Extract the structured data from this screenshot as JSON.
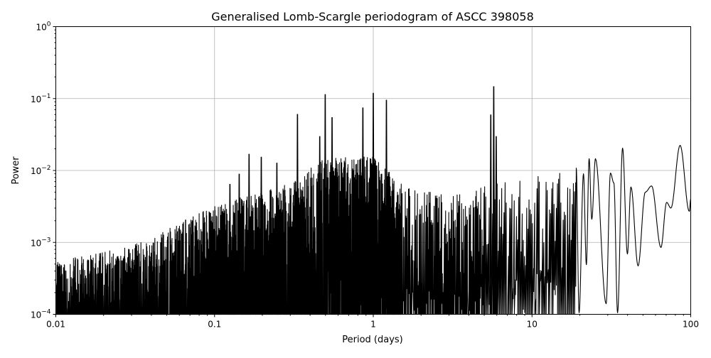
{
  "chart_data": {
    "type": "line",
    "title": "Generalised Lomb-Scargle periodogram of ASCC 398058",
    "xlabel": "Period (days)",
    "ylabel": "Power",
    "x_scale": "log",
    "y_scale": "log",
    "xlim": [
      0.01,
      100
    ],
    "ylim": [
      0.0001,
      1
    ],
    "grid": true,
    "line_color": "#000000",
    "grid_color": "#b0b0b0",
    "x_ticks": [
      {
        "value": 0.01,
        "label": "0.01"
      },
      {
        "value": 0.1,
        "label": "0.1"
      },
      {
        "value": 1,
        "label": "1"
      },
      {
        "value": 10,
        "label": "10"
      },
      {
        "value": 100,
        "label": "100"
      }
    ],
    "y_ticks": [
      {
        "value": 0.0001,
        "base": "10",
        "exp": "−4"
      },
      {
        "value": 0.001,
        "base": "10",
        "exp": "−3"
      },
      {
        "value": 0.01,
        "base": "10",
        "exp": "−2"
      },
      {
        "value": 0.1,
        "base": "10",
        "exp": "−1"
      },
      {
        "value": 1,
        "base": "10",
        "exp": "0"
      }
    ],
    "noise_envelope": [
      {
        "period": 0.01,
        "power": 0.0005
      },
      {
        "period": 0.03,
        "power": 0.0008
      },
      {
        "period": 0.1,
        "power": 0.003
      },
      {
        "period": 0.3,
        "power": 0.006
      },
      {
        "period": 0.5,
        "power": 0.014
      },
      {
        "period": 1.0,
        "power": 0.014
      },
      {
        "period": 1.5,
        "power": 0.006
      },
      {
        "period": 3.0,
        "power": 0.004
      },
      {
        "period": 6.0,
        "power": 0.006
      },
      {
        "period": 12.0,
        "power": 0.008
      },
      {
        "period": 19.0,
        "power": 0.009
      }
    ],
    "peaks": [
      {
        "period": 0.125,
        "power": 0.0065
      },
      {
        "period": 0.143,
        "power": 0.009
      },
      {
        "period": 0.165,
        "power": 0.017
      },
      {
        "period": 0.197,
        "power": 0.0155
      },
      {
        "period": 0.247,
        "power": 0.0128
      },
      {
        "period": 0.333,
        "power": 0.061
      },
      {
        "period": 0.46,
        "power": 0.03
      },
      {
        "period": 0.498,
        "power": 0.115
      },
      {
        "period": 0.55,
        "power": 0.055
      },
      {
        "period": 0.86,
        "power": 0.075
      },
      {
        "period": 1.0,
        "power": 0.12
      },
      {
        "period": 1.21,
        "power": 0.096
      },
      {
        "period": 5.5,
        "power": 0.06
      },
      {
        "period": 5.74,
        "power": 0.148
      },
      {
        "period": 5.95,
        "power": 0.03
      }
    ],
    "long_period_curve": [
      {
        "period": 19.0,
        "power": 0.0108
      },
      {
        "period": 19.8,
        "power": 0.000105
      },
      {
        "period": 21.1,
        "power": 0.009
      },
      {
        "period": 22.0,
        "power": 0.00049
      },
      {
        "period": 22.9,
        "power": 0.0146
      },
      {
        "period": 23.8,
        "power": 0.0021
      },
      {
        "period": 25.1,
        "power": 0.0146
      },
      {
        "period": 29.3,
        "power": 0.00014
      },
      {
        "period": 31.2,
        "power": 0.0092
      },
      {
        "period": 32.8,
        "power": 0.0067
      },
      {
        "period": 34.6,
        "power": 0.000105
      },
      {
        "period": 37.2,
        "power": 0.0205
      },
      {
        "period": 39.9,
        "power": 0.00069
      },
      {
        "period": 42.0,
        "power": 0.0059
      },
      {
        "period": 46.6,
        "power": 0.00047
      },
      {
        "period": 51.7,
        "power": 0.005
      },
      {
        "period": 56.7,
        "power": 0.0061
      },
      {
        "period": 64.9,
        "power": 0.00085
      },
      {
        "period": 70.5,
        "power": 0.0036
      },
      {
        "period": 75.0,
        "power": 0.003
      },
      {
        "period": 85.7,
        "power": 0.0224
      },
      {
        "period": 97.9,
        "power": 0.0027
      },
      {
        "period": 100.0,
        "power": 0.004
      }
    ]
  }
}
